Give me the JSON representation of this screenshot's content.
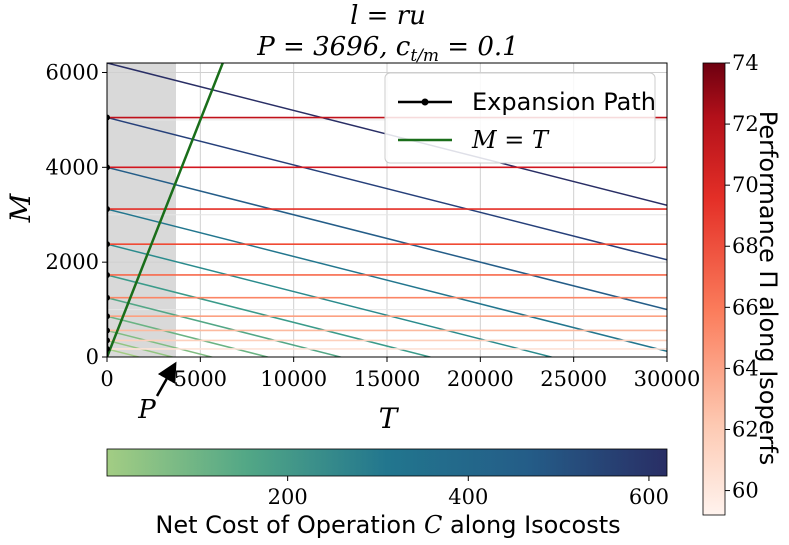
{
  "chart_data": {
    "type": "line",
    "title_line1": "l = ru",
    "title_line2": "P = 3696, c",
    "title_line2_sub": "t/m",
    "title_line2_end": " = 0.1",
    "xlabel": "T",
    "ylabel": "M",
    "xlim": [
      0,
      30000
    ],
    "ylim": [
      0,
      6200
    ],
    "x_ticks": [
      "0",
      "5000",
      "10000",
      "15000",
      "20000",
      "25000",
      "30000"
    ],
    "x_tick_values": [
      0,
      5000,
      10000,
      15000,
      20000,
      25000,
      30000
    ],
    "y_ticks": [
      "0",
      "2000",
      "4000",
      "6000"
    ],
    "y_tick_values": [
      0,
      2000,
      4000,
      6000
    ],
    "grid": true,
    "shaded_region": {
      "x": [
        0,
        3696
      ],
      "color": "#d9d9d9"
    },
    "P_marker": {
      "label": "P",
      "x": 3696
    },
    "legend": {
      "placement": "top-right",
      "entries": [
        {
          "label": "Expansion Path",
          "color": "#000000",
          "marker": "dot"
        },
        {
          "label": "M = T",
          "color": "#1a6e1a",
          "marker": "none"
        }
      ]
    },
    "expansion_path_x": 0,
    "isoperf_levels_M": [
      5050,
      4000,
      3120,
      2380,
      1730,
      1250,
      860,
      560,
      350,
      170
    ],
    "isoperf_colors": [
      "#c0111a",
      "#d2161f",
      "#e42f27",
      "#f04a34",
      "#f7694b",
      "#fb8565",
      "#fca182",
      "#fcba9f",
      "#fdd0bc",
      "#fee2d6"
    ],
    "isocost_intercepts_M": [
      6200,
      5050,
      4000,
      3120,
      2380,
      1730,
      1250,
      860,
      560,
      350,
      170
    ],
    "isocost_slope": -0.1,
    "isocost_colors": [
      "#292e65",
      "#26407a",
      "#245d88",
      "#22768e",
      "#2a8b8d",
      "#3a9b8a",
      "#52a786",
      "#6ab383",
      "#80bd82",
      "#92c581",
      "#a3cd84"
    ],
    "line_MT": {
      "slope": 1,
      "color": "#1a6e1a"
    },
    "colorbar_cost": {
      "label": "Net Cost of Operation ",
      "label_var": "C",
      "label_end": " along Isocosts",
      "ticks": [
        "200",
        "400",
        "600"
      ],
      "tick_values": [
        200,
        400,
        600
      ],
      "range": [
        0,
        620
      ]
    },
    "colorbar_perf": {
      "label": "Performance Π along Isoperfs",
      "ticks": [
        "60",
        "62",
        "64",
        "66",
        "68",
        "70",
        "72",
        "74"
      ],
      "tick_values": [
        60,
        62,
        64,
        66,
        68,
        70,
        72,
        74
      ],
      "range": [
        59.2,
        74
      ]
    }
  }
}
